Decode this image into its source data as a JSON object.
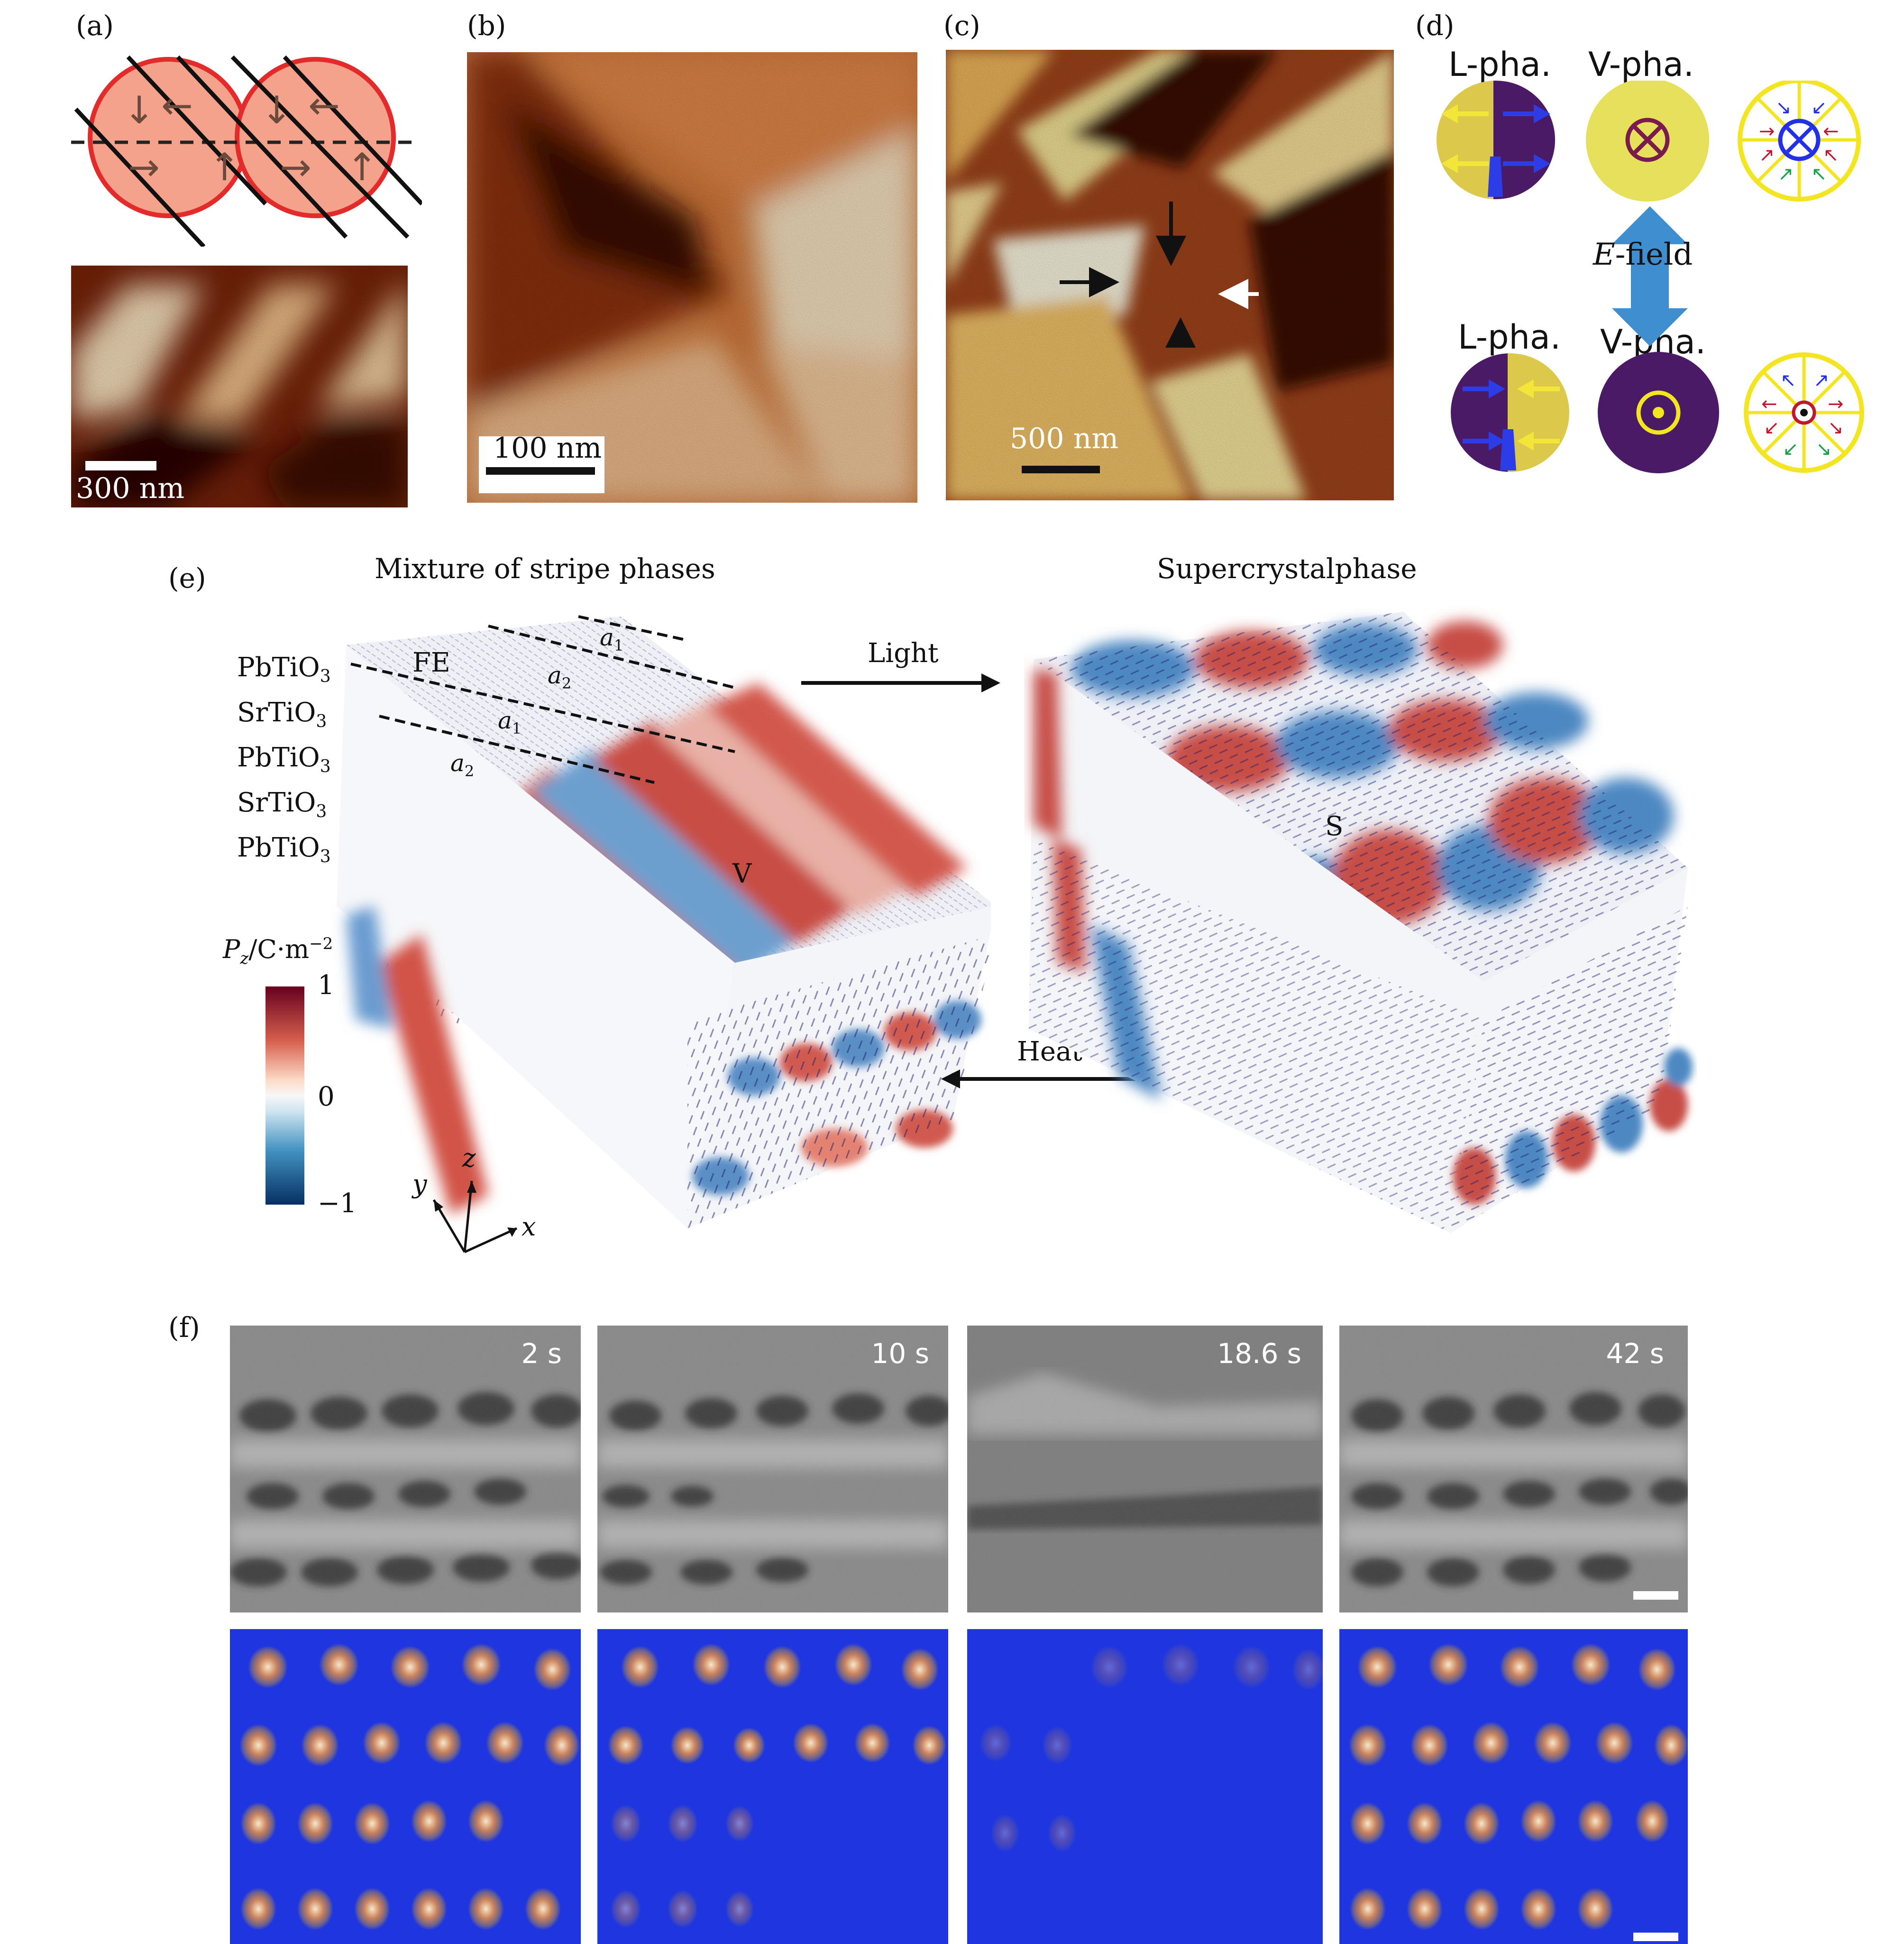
{
  "panels": {
    "a": {
      "label": "(a)",
      "scale": "300 nm"
    },
    "b": {
      "label": "(b)",
      "scale": "100 nm"
    },
    "c": {
      "label": "(c)",
      "scale": "500 nm"
    },
    "d": {
      "label": "(d)",
      "top_left": "L-pha.",
      "top_mid": "V-pha.",
      "bottom_left": "L-pha.",
      "bottom_mid": "V-pha.",
      "field_prefix": "E",
      "field_suffix": "-field"
    },
    "e": {
      "label": "(e)",
      "left_title": "Mixture of stripe phases",
      "right_title": "Supercrystalphase",
      "layers": [
        "PbTiO3",
        "SrTiO3",
        "PbTiO3",
        "SrTiO3",
        "PbTiO3"
      ],
      "fe": "FE",
      "a1": "a1",
      "a2": "a2",
      "v": "V",
      "s": "S",
      "light": "Light",
      "heat": "Heat",
      "colorbar_title": "Pz/C·m−2",
      "colorbar_ticks": [
        "1",
        "0",
        "−1"
      ],
      "axes": {
        "x": "x",
        "y": "y",
        "z": "z"
      }
    },
    "f": {
      "label": "(f)",
      "times": [
        "2 s",
        "10 s",
        "18.6 s",
        "42 s"
      ]
    }
  },
  "colors": {
    "afm_dark": "#3a0a02",
    "afm_mid": "#c2531a",
    "afm_light": "#fbe3bf",
    "red": "#b2182b",
    "blue": "#2166ac",
    "pfm_yellow": "#e6e05a",
    "pfm_purple": "#4b1a5e",
    "stem_blue": "#1f35e0"
  }
}
